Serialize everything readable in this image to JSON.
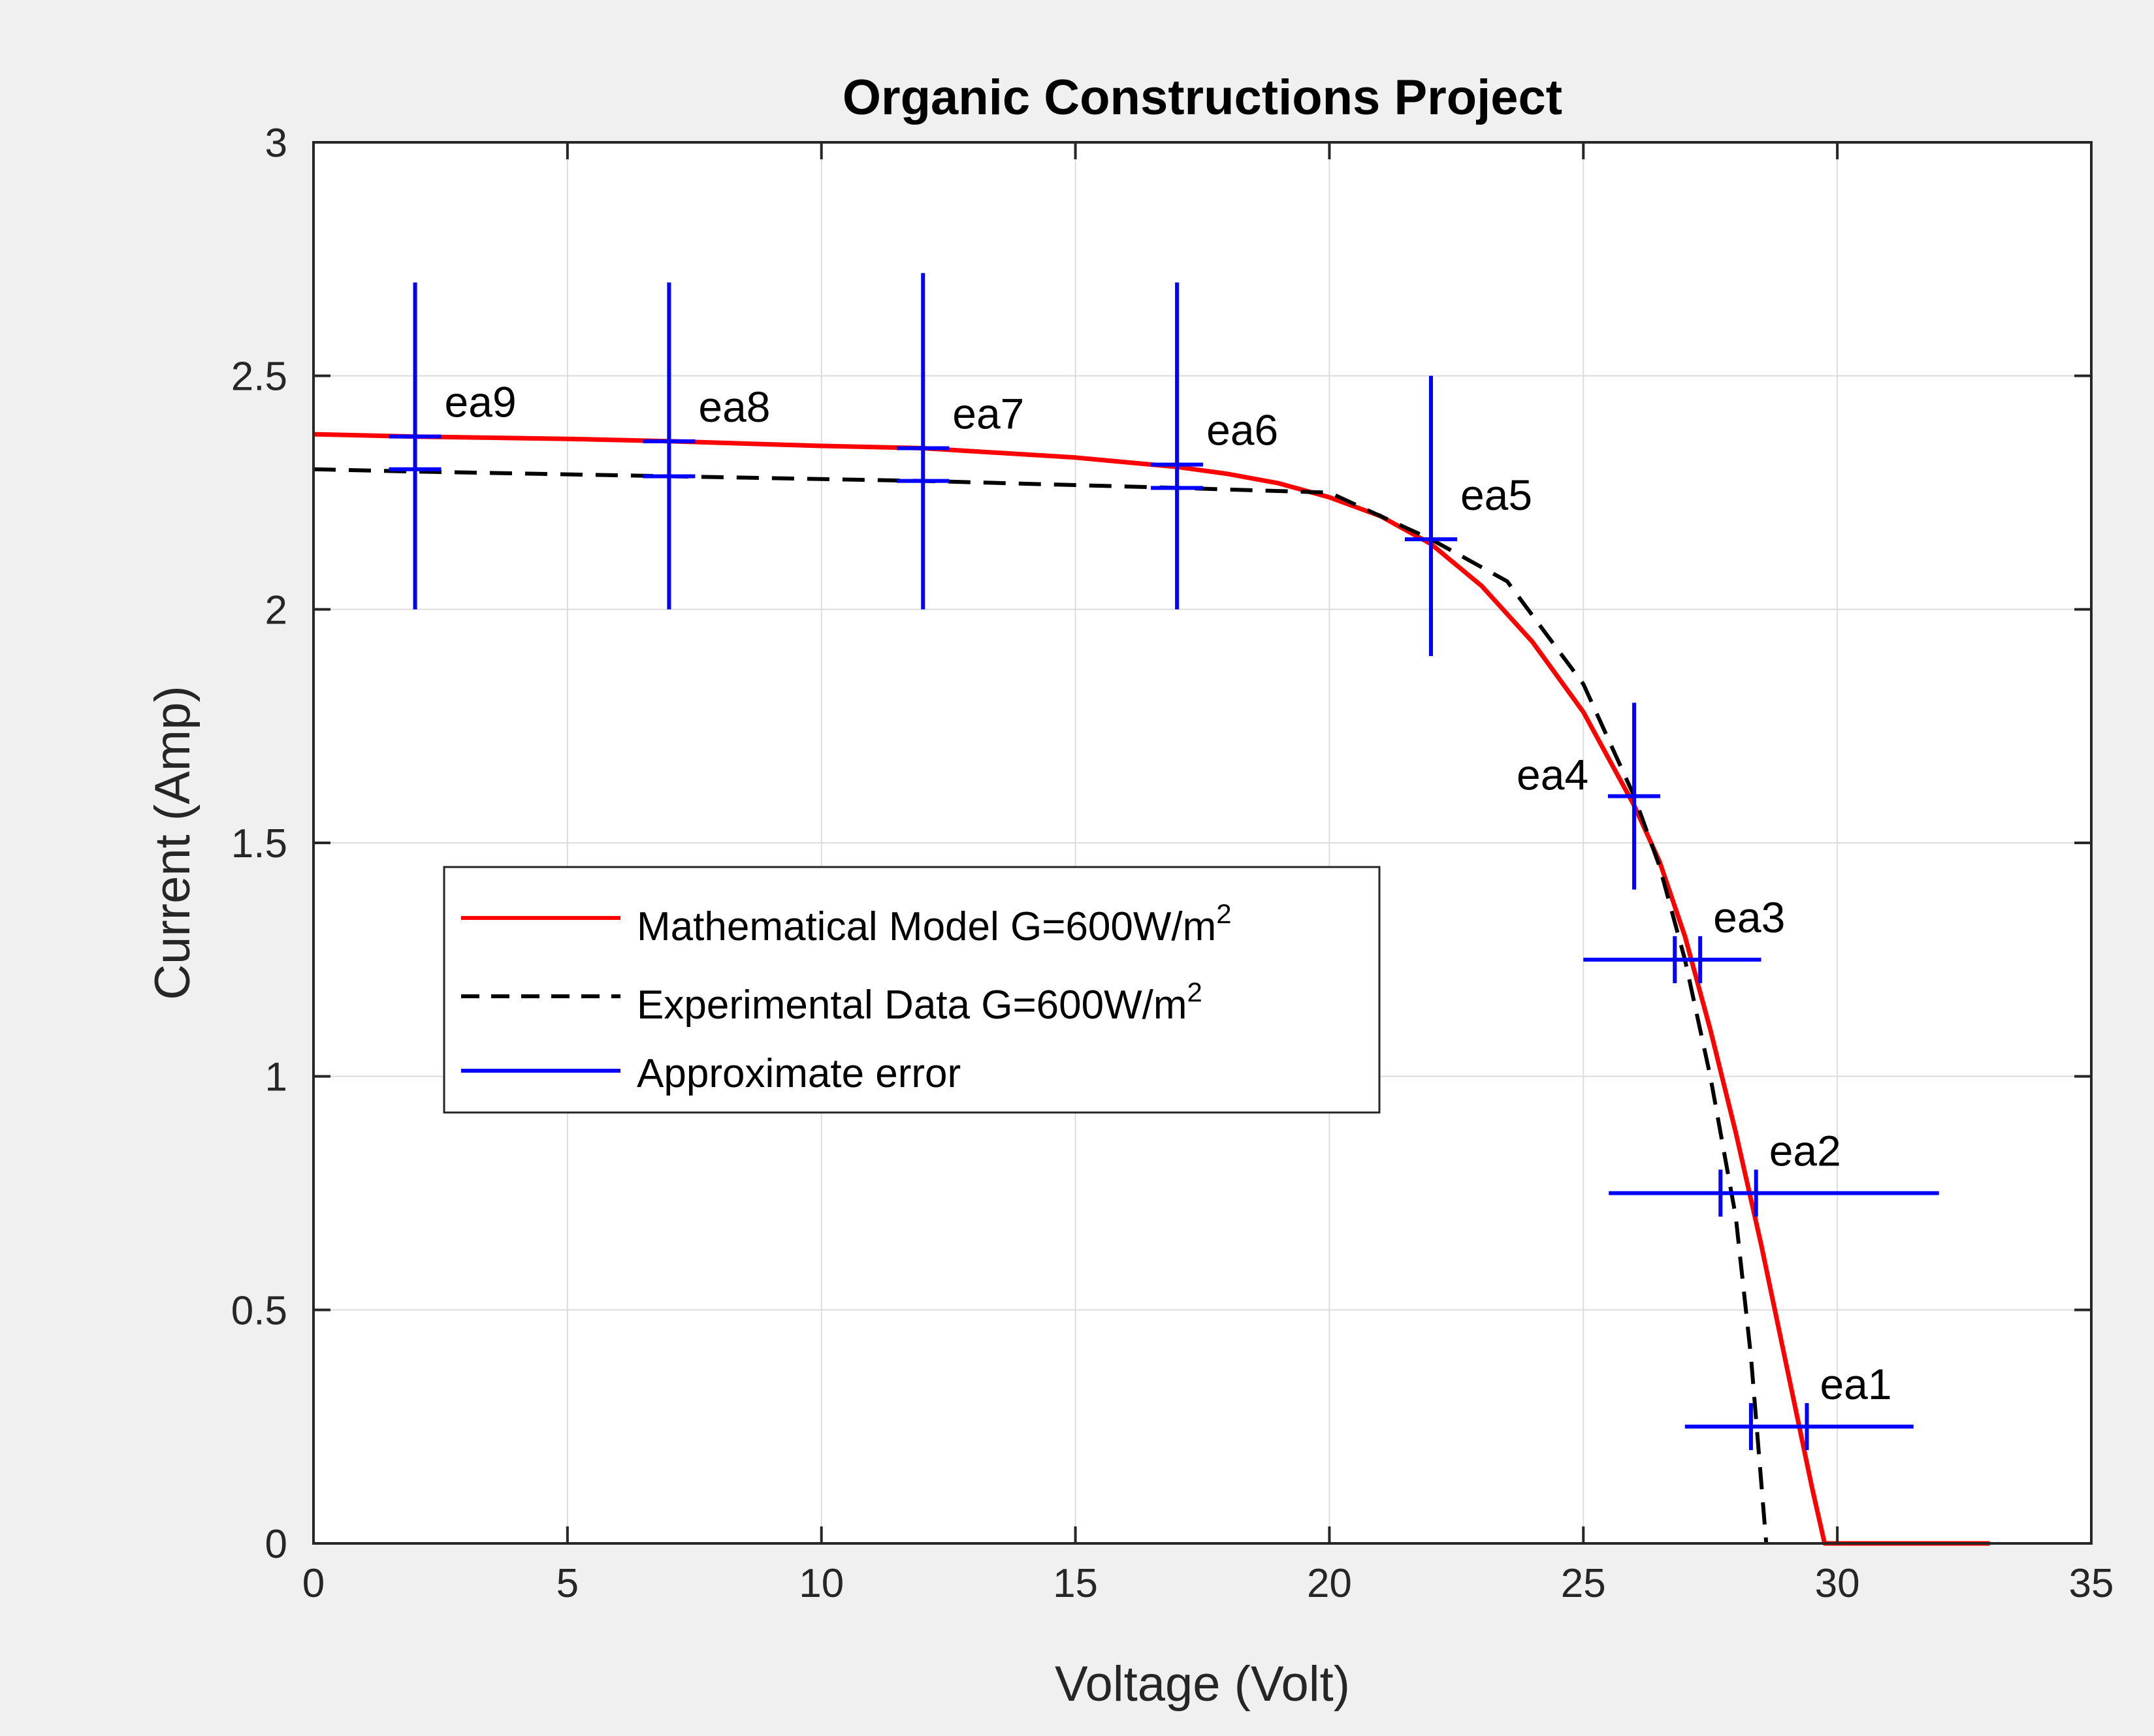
{
  "chart_data": {
    "type": "line",
    "title": "Organic Constructions Project",
    "xlabel": "Voltage (Volt)",
    "ylabel": "Current (Amp)",
    "xlim": [
      0,
      35
    ],
    "ylim": [
      0,
      3
    ],
    "xticks": [
      0,
      5,
      10,
      15,
      20,
      25,
      30,
      35
    ],
    "yticks": [
      0,
      0.5,
      1,
      1.5,
      2,
      2.5,
      3
    ],
    "xtick_labels": [
      "0",
      "5",
      "10",
      "15",
      "20",
      "25",
      "30",
      "35"
    ],
    "ytick_labels": [
      "0",
      "0.5",
      "1",
      "1.5",
      "2",
      "2.5",
      "3"
    ],
    "grid": true,
    "series": [
      {
        "name": "Mathematical Model G=600W/m",
        "superscript": "2",
        "color": "#ff0000",
        "style": "solid",
        "x": [
          0,
          2,
          5,
          7,
          10,
          12,
          15,
          17,
          18,
          19,
          20,
          21,
          22,
          23,
          24,
          25,
          26,
          26.5,
          27,
          27.5,
          28,
          28.5,
          29,
          29.5,
          29.75,
          30,
          33
        ],
        "y": [
          2.375,
          2.37,
          2.365,
          2.36,
          2.35,
          2.345,
          2.325,
          2.305,
          2.29,
          2.27,
          2.24,
          2.2,
          2.14,
          2.05,
          1.93,
          1.78,
          1.58,
          1.46,
          1.3,
          1.1,
          0.88,
          0.64,
          0.38,
          0.12,
          0,
          0,
          0
        ]
      },
      {
        "name": "Experimental Data G=600W/m",
        "superscript": "2",
        "color": "#000000",
        "style": "dashed",
        "x": [
          0,
          2,
          7,
          12,
          17,
          20,
          22,
          23.5,
          25,
          26,
          26.5,
          27,
          27.5,
          28,
          28.3,
          28.6
        ],
        "y": [
          2.3,
          2.295,
          2.285,
          2.275,
          2.26,
          2.25,
          2.15,
          2.06,
          1.84,
          1.6,
          1.45,
          1.25,
          1.0,
          0.7,
          0.4,
          0
        ]
      }
    ],
    "error_series": {
      "name": "Approximate error",
      "color": "#0000ff",
      "points": [
        {
          "label": "ea9",
          "x": 2,
          "y_top": 2.37,
          "y_bottom": 2.3,
          "v_lo": 2.0,
          "v_hi": 2.7
        },
        {
          "label": "ea8",
          "x": 7,
          "y_top": 2.36,
          "y_bottom": 2.285,
          "v_lo": 2.0,
          "v_hi": 2.7
        },
        {
          "label": "ea7",
          "x": 12,
          "y_top": 2.345,
          "y_bottom": 2.275,
          "v_lo": 2.0,
          "v_hi": 2.72
        },
        {
          "label": "ea6",
          "x": 17,
          "y_top": 2.31,
          "y_bottom": 2.26,
          "v_lo": 2.0,
          "v_hi": 2.7
        },
        {
          "label": "ea5",
          "x": 22,
          "y": 2.15,
          "v_lo": 1.9,
          "v_hi": 2.5
        },
        {
          "label": "ea4",
          "x": 26,
          "y": 1.6,
          "v_lo": 1.4,
          "v_hi": 1.8
        },
        {
          "label": "ea3",
          "y": 1.25,
          "x_left": 26.8,
          "x_right": 27.3,
          "h_lo": 25.0,
          "h_hi": 28.5
        },
        {
          "label": "ea2",
          "y": 0.75,
          "x_left": 27.7,
          "x_right": 28.4,
          "h_lo": 25.5,
          "h_hi": 32.0
        },
        {
          "label": "ea1",
          "y": 0.25,
          "x_left": 28.3,
          "x_right": 29.4,
          "h_lo": 27.0,
          "h_hi": 31.5
        }
      ]
    },
    "legend": {
      "placement": "center-left",
      "entries": [
        {
          "text": "Mathematical Model G=600W/m",
          "sup": "2",
          "color": "#ff0000",
          "style": "solid"
        },
        {
          "text": "Experimental Data G=600W/m",
          "sup": "2",
          "color": "#000000",
          "style": "dashed"
        },
        {
          "text": "Approximate error",
          "sup": "",
          "color": "#0000ff",
          "style": "solid"
        }
      ]
    }
  }
}
